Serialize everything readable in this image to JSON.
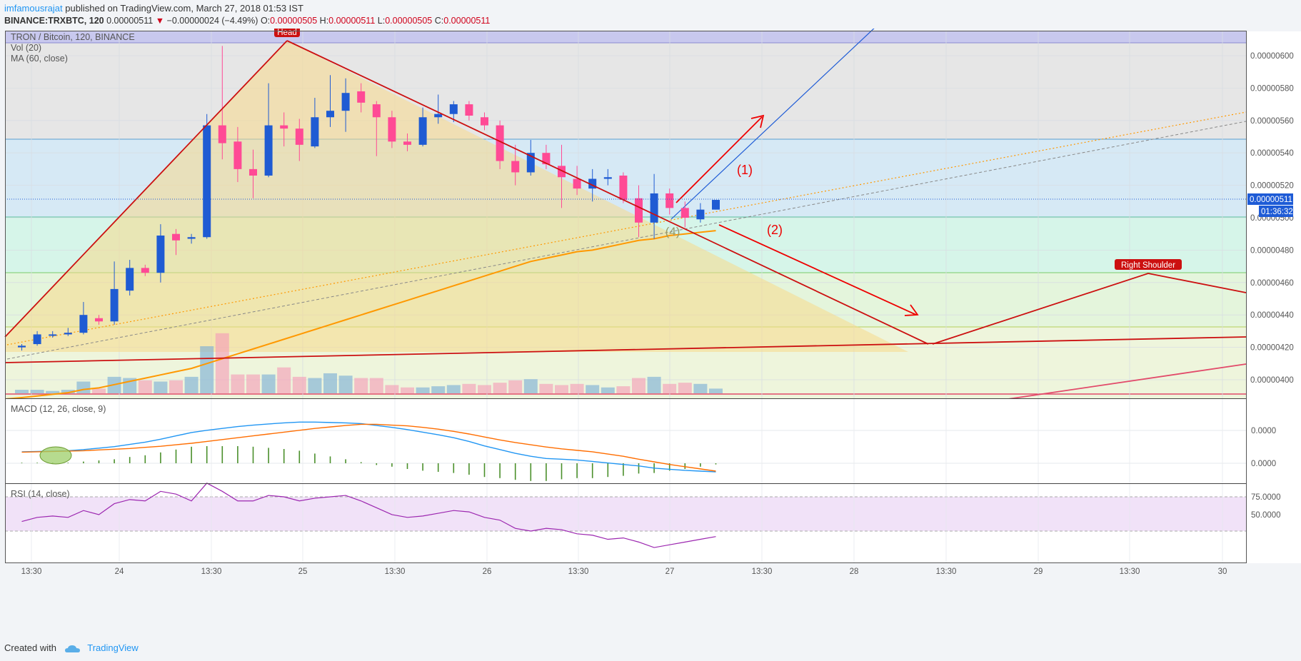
{
  "header": {
    "user": "imfamousrajat",
    "published_text": "published on TradingView.com, March 27, 2018 01:53 IST",
    "symbol": "BINANCE:TRXBTC, 120",
    "last": "0.00000511",
    "change_arrow": "▼",
    "change": "−0.00000024 (−4.49%)",
    "o_label": "O:",
    "o": "0.00000505",
    "h_label": "H:",
    "h": "0.00000511",
    "l_label": "L:",
    "l": "0.00000505",
    "c_label": "C:",
    "c": "0.00000511"
  },
  "legend": {
    "title": "TRON / Bitcoin, 120, BINANCE",
    "vol": "Vol (20)",
    "ma": "MA (60, close)",
    "macd": "MACD (12, 26, close, 9)",
    "rsi": "RSI (14, close)"
  },
  "annotations": {
    "head": "Head",
    "right_shoulder": "Right Shoulder",
    "path1": "(1)",
    "path2": "(2)",
    "point4": "(4)"
  },
  "price_axis": {
    "last_price_tag": "0.00000511",
    "countdown_tag": "01:36:32"
  },
  "footer": {
    "created_with": "Created with",
    "brand": "TradingView"
  },
  "colors": {
    "up": "#1f5bd3",
    "down": "#ff4a95",
    "ma": "#ff9800",
    "macd": "#2196f3",
    "signal": "#ff6d00",
    "rsi": "#9c27b0",
    "pattern": "#cc1010"
  },
  "chart_data": {
    "type": "candlestick",
    "ylim": [
      3.9e-06,
      6.1e-06
    ],
    "price_ticks": [
      "0.00000600",
      "0.00000580",
      "0.00000560",
      "0.00000540",
      "0.00000520",
      "0.00000500",
      "0.00000480",
      "0.00000460",
      "0.00000440",
      "0.00000420",
      "0.00000400"
    ],
    "time_ticks": [
      "13:30",
      "24",
      "13:30",
      "25",
      "13:30",
      "26",
      "13:30",
      "27",
      "13:30",
      "28",
      "13:30",
      "29",
      "13:30",
      "30"
    ],
    "macd_ticks": [
      "0.0000",
      "0.0000"
    ],
    "rsi_ticks": [
      "75.0000",
      "50.0000"
    ],
    "candles_ohlc": [
      [
        4.2e-06,
        4.22e-06,
        4.18e-06,
        4.21e-06
      ],
      [
        4.22e-06,
        4.3e-06,
        4.21e-06,
        4.28e-06
      ],
      [
        4.28e-06,
        4.3e-06,
        4.26e-06,
        4.28e-06
      ],
      [
        4.28e-06,
        4.32e-06,
        4.27e-06,
        4.29e-06
      ],
      [
        4.29e-06,
        4.48e-06,
        4.28e-06,
        4.4e-06
      ],
      [
        4.38e-06,
        4.4e-06,
        4.34e-06,
        4.36e-06
      ],
      [
        4.36e-06,
        4.73e-06,
        4.34e-06,
        4.56e-06
      ],
      [
        4.55e-06,
        4.74e-06,
        4.52e-06,
        4.69e-06
      ],
      [
        4.69e-06,
        4.71e-06,
        4.64e-06,
        4.66e-06
      ],
      [
        4.66e-06,
        4.96e-06,
        4.6e-06,
        4.89e-06
      ],
      [
        4.9e-06,
        4.93e-06,
        4.77e-06,
        4.86e-06
      ],
      [
        4.87e-06,
        4.9e-06,
        4.84e-06,
        4.88e-06
      ],
      [
        4.88e-06,
        5.64e-06,
        4.87e-06,
        5.57e-06
      ],
      [
        5.57e-06,
        6.06e-06,
        5.36e-06,
        5.46e-06
      ],
      [
        5.47e-06,
        5.56e-06,
        5.22e-06,
        5.3e-06
      ],
      [
        5.3e-06,
        5.42e-06,
        5.12e-06,
        5.26e-06
      ],
      [
        5.26e-06,
        5.83e-06,
        5.25e-06,
        5.57e-06
      ],
      [
        5.57e-06,
        5.65e-06,
        5.44e-06,
        5.55e-06
      ],
      [
        5.55e-06,
        5.61e-06,
        5.35e-06,
        5.45e-06
      ],
      [
        5.44e-06,
        5.74e-06,
        5.43e-06,
        5.62e-06
      ],
      [
        5.62e-06,
        5.88e-06,
        5.56e-06,
        5.66e-06
      ],
      [
        5.66e-06,
        5.86e-06,
        5.53e-06,
        5.77e-06
      ],
      [
        5.78e-06,
        5.83e-06,
        5.65e-06,
        5.71e-06
      ],
      [
        5.7e-06,
        5.72e-06,
        5.38e-06,
        5.62e-06
      ],
      [
        5.62e-06,
        5.66e-06,
        5.43e-06,
        5.47e-06
      ],
      [
        5.47e-06,
        5.52e-06,
        5.41e-06,
        5.45e-06
      ],
      [
        5.45e-06,
        5.68e-06,
        5.44e-06,
        5.62e-06
      ],
      [
        5.62e-06,
        5.76e-06,
        5.58e-06,
        5.64e-06
      ],
      [
        5.64e-06,
        5.72e-06,
        5.59e-06,
        5.7e-06
      ],
      [
        5.7e-06,
        5.72e-06,
        5.6e-06,
        5.63e-06
      ],
      [
        5.62e-06,
        5.65e-06,
        5.54e-06,
        5.57e-06
      ],
      [
        5.57e-06,
        5.6e-06,
        5.3e-06,
        5.35e-06
      ],
      [
        5.35e-06,
        5.45e-06,
        5.2e-06,
        5.28e-06
      ],
      [
        5.28e-06,
        5.48e-06,
        5.26e-06,
        5.4e-06
      ],
      [
        5.4e-06,
        5.45e-06,
        5.3e-06,
        5.33e-06
      ],
      [
        5.32e-06,
        5.45e-06,
        5.06e-06,
        5.25e-06
      ],
      [
        5.24e-06,
        5.32e-06,
        5.14e-06,
        5.18e-06
      ],
      [
        5.18e-06,
        5.3e-06,
        5.1e-06,
        5.24e-06
      ],
      [
        5.24e-06,
        5.3e-06,
        5.2e-06,
        5.25e-06
      ],
      [
        5.26e-06,
        5.28e-06,
        5.09e-06,
        5.11e-06
      ],
      [
        5.12e-06,
        5.2e-06,
        4.88e-06,
        4.97e-06
      ],
      [
        4.97e-06,
        5.27e-06,
        4.87e-06,
        5.15e-06
      ],
      [
        5.15e-06,
        5.18e-06,
        5.02e-06,
        5.06e-06
      ],
      [
        5.06e-06,
        5.1e-06,
        4.94e-06,
        5e-06
      ],
      [
        4.99e-06,
        5.09e-06,
        4.97e-06,
        5.05e-06
      ],
      [
        5.05e-06,
        5.11e-06,
        5.05e-06,
        5.11e-06
      ]
    ],
    "ma60": [
      3.89e-06,
      3.9e-06,
      3.91e-06,
      3.92e-06,
      3.94e-06,
      3.95e-06,
      3.97e-06,
      3.99e-06,
      4.01e-06,
      4.03e-06,
      4.05e-06,
      4.07e-06,
      4.1e-06,
      4.13e-06,
      4.16e-06,
      4.19e-06,
      4.22e-06,
      4.25e-06,
      4.28e-06,
      4.31e-06,
      4.34e-06,
      4.37e-06,
      4.4e-06,
      4.43e-06,
      4.46e-06,
      4.49e-06,
      4.52e-06,
      4.55e-06,
      4.58e-06,
      4.61e-06,
      4.64e-06,
      4.67e-06,
      4.7e-06,
      4.73e-06,
      4.75e-06,
      4.77e-06,
      4.79e-06,
      4.8e-06,
      4.82e-06,
      4.84e-06,
      4.86e-06,
      4.87e-06,
      4.89e-06,
      4.9e-06,
      4.91e-06,
      4.92e-06
    ],
    "volume": [
      3,
      3,
      2,
      3,
      10,
      4,
      14,
      13,
      11,
      10,
      11,
      14,
      40,
      51,
      16,
      16,
      16,
      22,
      14,
      13,
      17,
      15,
      13,
      13,
      7,
      5,
      5,
      6,
      7,
      8,
      7,
      9,
      11,
      12,
      8,
      7,
      8,
      7,
      5,
      6,
      13,
      14,
      8,
      9,
      8,
      4
    ],
    "macd": [
      2,
      3,
      4,
      5,
      8,
      12,
      16,
      22,
      28,
      36,
      45,
      54,
      60,
      65,
      70,
      74,
      77,
      80,
      82,
      82,
      81,
      80,
      78,
      73,
      68,
      62,
      55,
      48,
      40,
      30,
      18,
      8,
      -2,
      -10,
      -16,
      -18,
      -20,
      -24,
      -28,
      -32,
      -36,
      -42,
      -45,
      -48,
      -50,
      -52
    ],
    "signal": [
      1,
      2,
      3,
      4,
      5,
      7,
      9,
      11,
      14,
      17,
      21,
      25,
      30,
      35,
      40,
      45,
      50,
      55,
      60,
      65,
      69,
      73,
      76,
      76,
      74,
      72,
      68,
      63,
      57,
      50,
      42,
      34,
      27,
      21,
      15,
      10,
      6,
      2,
      -4,
      -10,
      -18,
      -25,
      -32,
      -38,
      -44,
      -50
    ],
    "rsi": [
      57,
      60,
      61,
      60,
      65,
      62,
      70,
      73,
      72,
      79,
      77,
      72,
      85,
      79,
      72,
      72,
      76,
      75,
      72,
      74,
      75,
      76,
      72,
      67,
      62,
      60,
      61,
      63,
      65,
      64,
      60,
      58,
      52,
      50,
      52,
      51,
      48,
      47,
      44,
      45,
      42,
      38,
      40,
      42,
      44,
      46
    ]
  }
}
